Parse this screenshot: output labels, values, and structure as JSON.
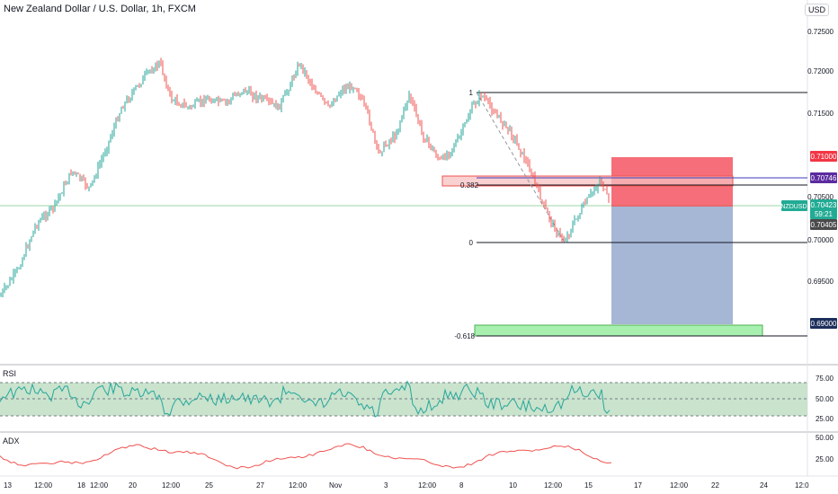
{
  "window": {
    "title": "New Zealand Dollar / U.S. Dollar, 1h, FXCM",
    "currency_button": "USD"
  },
  "price_axis": {
    "ticks": [
      "0.72500",
      "0.72000",
      "0.71500",
      "0.70500",
      "0.70000",
      "0.69500"
    ],
    "tags": {
      "stop": {
        "text": "0.71000",
        "color": "#f23645"
      },
      "level": {
        "text": "0.70746",
        "color": "#5b2c9f"
      },
      "symbol": {
        "text": "NZDUSD",
        "color": "#22ab94"
      },
      "last": {
        "text": "0.70423",
        "color": "#22ab94"
      },
      "countdown": {
        "text": "59:21",
        "color": "#22ab94"
      },
      "entry": {
        "text": "0.70405",
        "color": "#4a4a4a"
      },
      "target": {
        "text": "0.69000",
        "color": "#1c2e5b"
      }
    }
  },
  "time_axis": {
    "ticks": [
      "13",
      "12:00",
      "18",
      "12:00",
      "20",
      "12:00",
      "25",
      "27",
      "12:00",
      "Nov",
      "3",
      "12:00",
      "8",
      "10",
      "12:00",
      "15",
      "17",
      "12:00",
      "22",
      "24",
      "12:0"
    ]
  },
  "fib": {
    "labels": [
      "1",
      "0.382",
      "0",
      "-0.618"
    ]
  },
  "indicators": {
    "rsi": {
      "name": "RSI",
      "ticks": [
        "75.00",
        "50.00",
        "25.00"
      ]
    },
    "adx": {
      "name": "ADX",
      "ticks": [
        "50.00",
        "25.00"
      ]
    }
  },
  "colors": {
    "up": "#26a69a",
    "down": "#ef5350",
    "stop_zone": "#f23645",
    "target_zone": "#6a86b9",
    "rsi_line": "#26a69a",
    "rsi_band": "#c3e0c8",
    "adx_line": "#ef5350"
  }
}
